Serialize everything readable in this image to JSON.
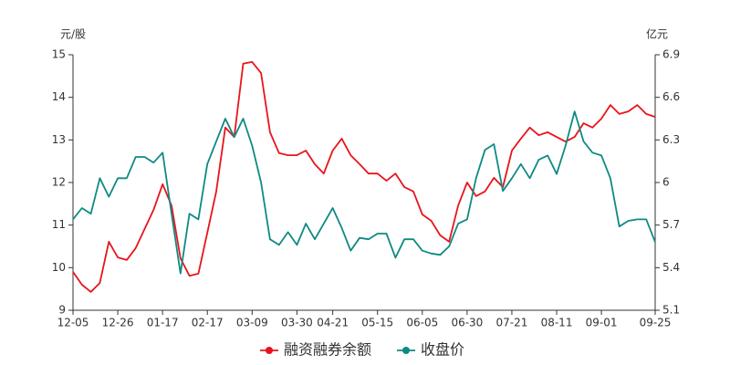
{
  "chart_data": {
    "type": "line",
    "y_label": "元/股",
    "y2_label": "亿元",
    "categories": [
      "12-05",
      null,
      null,
      null,
      null,
      "12-26",
      null,
      null,
      null,
      null,
      "01-17",
      null,
      null,
      null,
      null,
      "02-17",
      null,
      null,
      null,
      null,
      "03-09",
      null,
      null,
      null,
      null,
      "03-30",
      null,
      null,
      null,
      "04-21",
      null,
      null,
      null,
      null,
      "05-15",
      null,
      null,
      null,
      null,
      "06-05",
      null,
      null,
      null,
      null,
      "06-30",
      null,
      null,
      null,
      null,
      "07-21",
      null,
      null,
      null,
      null,
      "08-11",
      null,
      null,
      null,
      null,
      "09-01",
      null,
      null,
      null,
      null,
      null,
      "09-25"
    ],
    "series": [
      {
        "name": "融资融券余额",
        "color": "#e8141b",
        "axis": "y",
        "values": [
          9.9,
          9.6,
          9.43,
          9.64,
          10.61,
          10.24,
          10.18,
          10.46,
          10.91,
          11.36,
          11.96,
          11.46,
          10.22,
          9.81,
          9.86,
          10.82,
          11.79,
          13.29,
          13.07,
          14.79,
          14.83,
          14.57,
          13.18,
          12.69,
          12.64,
          12.64,
          12.75,
          12.43,
          12.21,
          12.75,
          13.03,
          12.64,
          12.43,
          12.21,
          12.21,
          12.04,
          12.21,
          11.89,
          11.79,
          11.25,
          11.1,
          10.76,
          10.61,
          11.46,
          12.0,
          11.68,
          11.79,
          12.11,
          11.89,
          12.75,
          13.03,
          13.29,
          13.11,
          13.18,
          13.07,
          12.96,
          13.07,
          13.39,
          13.29,
          13.5,
          13.82,
          13.61,
          13.67,
          13.82,
          13.61,
          13.54
        ]
      },
      {
        "name": "收盘价",
        "color": "#0e8a82",
        "axis": "y2",
        "values": [
          5.74,
          5.82,
          5.78,
          6.03,
          5.9,
          6.03,
          6.03,
          6.18,
          6.18,
          6.14,
          6.21,
          5.78,
          5.36,
          5.78,
          5.74,
          6.13,
          6.29,
          6.45,
          6.32,
          6.45,
          6.26,
          6.0,
          5.6,
          5.56,
          5.65,
          5.56,
          5.71,
          5.6,
          5.71,
          5.82,
          5.68,
          5.52,
          5.61,
          5.6,
          5.64,
          5.64,
          5.47,
          5.6,
          5.6,
          5.52,
          5.5,
          5.49,
          5.55,
          5.71,
          5.74,
          6.03,
          6.23,
          6.27,
          5.94,
          6.03,
          6.13,
          6.03,
          6.16,
          6.19,
          6.06,
          6.26,
          6.5,
          6.29,
          6.21,
          6.19,
          6.03,
          5.69,
          5.73,
          5.74,
          5.74,
          5.58
        ]
      }
    ],
    "ylim": [
      9,
      15
    ],
    "yticks": [
      9,
      10,
      11,
      12,
      13,
      14,
      15
    ],
    "y2lim": [
      5.1,
      6.9
    ],
    "y2ticks": [
      5.1,
      5.4,
      5.7,
      6,
      6.3,
      6.6,
      6.9
    ],
    "grid": false,
    "legend": "bottom"
  }
}
